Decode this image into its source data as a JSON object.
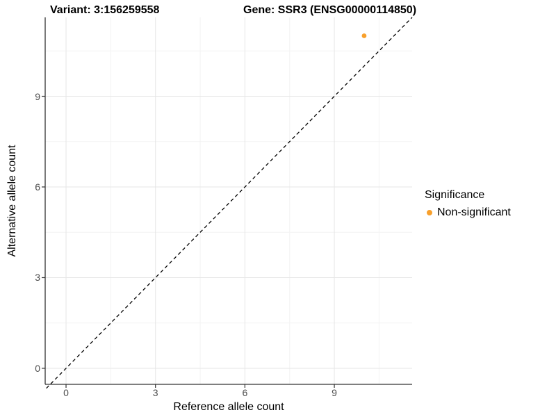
{
  "chart_data": {
    "type": "scatter",
    "titles": [
      "Variant: 3:156259558",
      "Gene: SSR3 (ENSG00000114850)"
    ],
    "xlabel": "Reference allele count",
    "ylabel": "Alternative allele count",
    "xlim": [
      -0.7,
      11.61
    ],
    "ylim": [
      -0.53,
      11.61
    ],
    "xticks": [
      0,
      3,
      6,
      9
    ],
    "yticks": [
      0,
      3,
      6,
      9
    ],
    "x_minor_gridlines": [
      1.5,
      4.5,
      7.5,
      10.5
    ],
    "y_minor_gridlines": [
      1.5,
      4.5,
      7.5,
      10.5
    ],
    "grid": "major+minor",
    "legend_position": "right",
    "legend_title": "Significance",
    "series": [
      {
        "name": "Non-significant",
        "color": "#F8A02C",
        "points": [
          {
            "x": 10,
            "y": 11
          }
        ]
      }
    ],
    "reference_line": {
      "type": "identity",
      "slope": 1,
      "intercept": 0,
      "style": "dashed",
      "color": "#000000"
    },
    "style_colors": {
      "axis_line": "#333333",
      "major_grid": "#e6e6e6",
      "minor_grid": "#f3f3f3",
      "tick_text": "#4d4d4d"
    }
  }
}
